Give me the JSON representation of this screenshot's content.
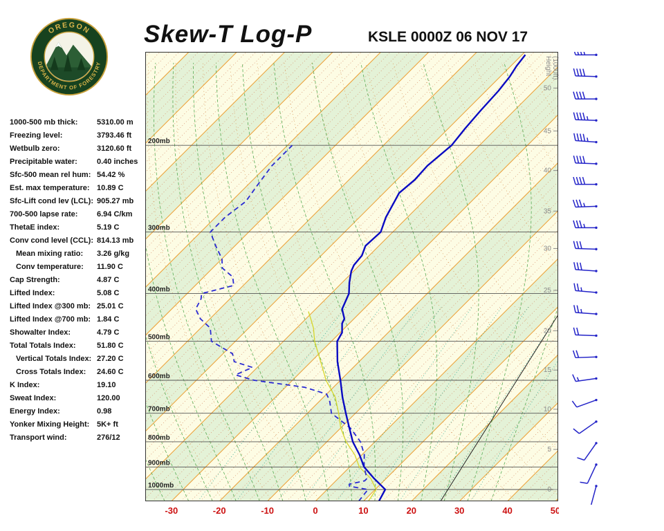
{
  "header": {
    "title": "Skew-T Log-P",
    "station_line": "KSLE 0000Z 06 NOV 17",
    "logo_top_text": "OREGON",
    "logo_bottom_text": "DEPARTMENT OF FORESTRY"
  },
  "indices": [
    {
      "label": "1000-500 mb thick:",
      "value": "5310.00 m"
    },
    {
      "label": "Freezing level:",
      "value": "3793.46 ft"
    },
    {
      "label": "Wetbulb zero:",
      "value": "3120.60 ft"
    },
    {
      "label": "Precipitable water:",
      "value": "0.40 inches"
    },
    {
      "label": "Sfc-500 mean rel hum:",
      "value": "54.42 %"
    },
    {
      "label": "Est. max temperature:",
      "value": "10.89 C"
    },
    {
      "label": "Sfc-Lift cond lev (LCL):",
      "value": "905.27 mb"
    },
    {
      "label": "700-500 lapse rate:",
      "value": "6.94 C/km"
    },
    {
      "label": "ThetaE index:",
      "value": "5.19 C"
    },
    {
      "label": "Conv cond level (CCL):",
      "value": "814.13 mb"
    },
    {
      "label": "Mean mixing ratio:",
      "value": "3.26 g/kg",
      "indent": true
    },
    {
      "label": "Conv temperature:",
      "value": "11.90 C",
      "indent": true
    },
    {
      "label": "Cap Strength:",
      "value": "4.87 C"
    },
    {
      "label": "Lifted Index:",
      "value": "5.08 C"
    },
    {
      "label": "Lifted Index @300 mb:",
      "value": "25.01 C"
    },
    {
      "label": "Lifted Index @700 mb:",
      "value": "1.84 C"
    },
    {
      "label": "Showalter Index:",
      "value": "4.79 C"
    },
    {
      "label": "Total Totals Index:",
      "value": "51.80 C"
    },
    {
      "label": "Vertical Totals Index:",
      "value": "27.20 C",
      "indent": true
    },
    {
      "label": "Cross Totals Index:",
      "value": "24.60 C",
      "indent": true
    },
    {
      "label": "K Index:",
      "value": "19.10"
    },
    {
      "label": "Sweat Index:",
      "value": "120.00"
    },
    {
      "label": "Energy Index:",
      "value": "0.98"
    },
    {
      "label": "Yonker Mixing Height:",
      "value": "5K+ ft"
    },
    {
      "label": "Transport wind:",
      "value": "276/12"
    }
  ],
  "chart_data": {
    "type": "skewt_log_p",
    "station": "KSLE",
    "valid_time": "0000Z 06 NOV 17",
    "pressure_axis_mb": {
      "lines": [
        200,
        300,
        400,
        500,
        600,
        700,
        800,
        900,
        1000
      ],
      "range": [
        1056,
        129
      ],
      "label_suffix": "mb"
    },
    "temp_axis_c": {
      "ticks": [
        -30,
        -20,
        -10,
        0,
        10,
        20,
        30,
        40,
        50
      ],
      "range_at_surface": [
        -35,
        51
      ]
    },
    "height_axis": {
      "label": "Height (1000ft)",
      "ticks": [
        {
          "kft": 50,
          "p": 153
        },
        {
          "kft": 45,
          "p": 187
        },
        {
          "kft": 40,
          "p": 225
        },
        {
          "kft": 35,
          "p": 272
        },
        {
          "kft": 30,
          "p": 324
        },
        {
          "kft": 25,
          "p": 394
        },
        {
          "kft": 20,
          "p": 476
        },
        {
          "kft": 15,
          "p": 572
        },
        {
          "kft": 10,
          "p": 687
        },
        {
          "kft": 5,
          "p": 829
        },
        {
          "kft": 0,
          "p": 1000
        }
      ]
    },
    "isotherms": {
      "min": -130,
      "max": 50,
      "major_step": 10,
      "minor_step": 2
    },
    "dry_adiabats_k": [
      250,
      260,
      270,
      280,
      290,
      300,
      310,
      320,
      330,
      340,
      350,
      360,
      370,
      380,
      390,
      400,
      410,
      420,
      430,
      440,
      450
    ],
    "moist_adiabats_c": [
      -35,
      -30,
      -25,
      -20,
      -15,
      -10,
      -5,
      0,
      5,
      10,
      15,
      20,
      25,
      30,
      35
    ],
    "mixing_ratios_gkg": [
      0.5,
      1,
      2,
      3,
      5,
      8,
      12,
      20,
      30
    ],
    "reference_line": {
      "x1": 0.715,
      "y1": 1.0,
      "x2": 1.0,
      "y2": 0.585
    },
    "temperature_profile": [
      [
        1056,
        13.2
      ],
      [
        1000,
        12.1
      ],
      [
        950,
        7.5
      ],
      [
        900,
        3
      ],
      [
        850,
        -0.5
      ],
      [
        800,
        -4.6
      ],
      [
        750,
        -8.2
      ],
      [
        700,
        -12
      ],
      [
        650,
        -16
      ],
      [
        600,
        -20
      ],
      [
        550,
        -24.5
      ],
      [
        500,
        -28.8
      ],
      [
        480,
        -29.6
      ],
      [
        460,
        -31.5
      ],
      [
        450,
        -32
      ],
      [
        430,
        -34.5
      ],
      [
        400,
        -36.3
      ],
      [
        380,
        -38.5
      ],
      [
        360,
        -40.5
      ],
      [
        350,
        -41.2
      ],
      [
        335,
        -41.5
      ],
      [
        320,
        -42.8
      ],
      [
        300,
        -42.5
      ],
      [
        280,
        -44.5
      ],
      [
        260,
        -46
      ],
      [
        250,
        -46.8
      ],
      [
        235,
        -46.3
      ],
      [
        220,
        -46.6
      ],
      [
        200,
        -45.8
      ],
      [
        185,
        -46.5
      ],
      [
        170,
        -47
      ],
      [
        155,
        -47.4
      ],
      [
        145,
        -48
      ],
      [
        138,
        -48.8
      ],
      [
        131,
        -49.3
      ]
    ],
    "dewpoint_profile": [
      [
        1056,
        9
      ],
      [
        1000,
        8.5
      ],
      [
        985,
        4
      ],
      [
        975,
        3.5
      ],
      [
        960,
        6
      ],
      [
        950,
        6
      ],
      [
        900,
        3
      ],
      [
        850,
        0.5
      ],
      [
        800,
        -3
      ],
      [
        750,
        -8
      ],
      [
        700,
        -15
      ],
      [
        660,
        -18
      ],
      [
        640,
        -20
      ],
      [
        620,
        -26
      ],
      [
        600,
        -38
      ],
      [
        585,
        -43
      ],
      [
        565,
        -41
      ],
      [
        550,
        -46
      ],
      [
        530,
        -48
      ],
      [
        500,
        -55
      ],
      [
        470,
        -58
      ],
      [
        450,
        -62
      ],
      [
        430,
        -65
      ],
      [
        410,
        -66
      ],
      [
        400,
        -67
      ],
      [
        385,
        -62
      ],
      [
        370,
        -64
      ],
      [
        355,
        -68
      ],
      [
        340,
        -70
      ],
      [
        320,
        -74
      ],
      [
        300,
        -78
      ],
      [
        280,
        -78
      ],
      [
        260,
        -77
      ],
      [
        240,
        -78
      ],
      [
        220,
        -79
      ],
      [
        200,
        -79
      ]
    ],
    "wetbulb_profile": [
      [
        1056,
        11
      ],
      [
        1000,
        10.2
      ],
      [
        950,
        6.8
      ],
      [
        900,
        2
      ],
      [
        850,
        -1.5
      ],
      [
        800,
        -6
      ],
      [
        750,
        -10
      ],
      [
        700,
        -13.5
      ],
      [
        650,
        -17.5
      ],
      [
        600,
        -23
      ],
      [
        550,
        -28
      ],
      [
        500,
        -33.5
      ],
      [
        470,
        -36.5
      ],
      [
        450,
        -39
      ],
      [
        435,
        -41
      ]
    ],
    "winds": [
      {
        "p": 984,
        "dir": 195,
        "spd": 5
      },
      {
        "p": 890,
        "dir": 205,
        "spd": 8
      },
      {
        "p": 805,
        "dir": 215,
        "spd": 10
      },
      {
        "p": 728,
        "dir": 235,
        "spd": 12
      },
      {
        "p": 658,
        "dir": 250,
        "spd": 12
      },
      {
        "p": 595,
        "dir": 262,
        "spd": 15
      },
      {
        "p": 538,
        "dir": 268,
        "spd": 18
      },
      {
        "p": 487,
        "dir": 272,
        "spd": 20
      },
      {
        "p": 440,
        "dir": 274,
        "spd": 25
      },
      {
        "p": 398,
        "dir": 275,
        "spd": 25
      },
      {
        "p": 360,
        "dir": 274,
        "spd": 30
      },
      {
        "p": 325,
        "dir": 272,
        "spd": 30
      },
      {
        "p": 294,
        "dir": 270,
        "spd": 35
      },
      {
        "p": 266,
        "dir": 268,
        "spd": 35
      },
      {
        "p": 240,
        "dir": 270,
        "spd": 40
      },
      {
        "p": 218,
        "dir": 272,
        "spd": 40
      },
      {
        "p": 197,
        "dir": 274,
        "spd": 45
      },
      {
        "p": 178,
        "dir": 272,
        "spd": 45
      },
      {
        "p": 161,
        "dir": 270,
        "spd": 40
      },
      {
        "p": 145,
        "dir": 272,
        "spd": 40
      },
      {
        "p": 131,
        "dir": 270,
        "spd": 35
      }
    ],
    "colors": {
      "band_yellow": "#fdfce4",
      "band_green": "#e4f2d7",
      "isotherm": "#eda33d",
      "isotherm_minor": "#d58a66",
      "dry_adiabat": "#d9a05e",
      "moist_adiabat": "#5aab55",
      "mixing_ratio": "#2fa58c",
      "pressure_line": "#555555",
      "temp_axis": "#cc1111",
      "height_axis": "#8a8a8a",
      "temperature": "#0a0ac2",
      "dewpoint": "#2a2ad2",
      "wetbulb": "#d6d62a",
      "reference": "#222222",
      "barb": "#2323c8"
    }
  }
}
